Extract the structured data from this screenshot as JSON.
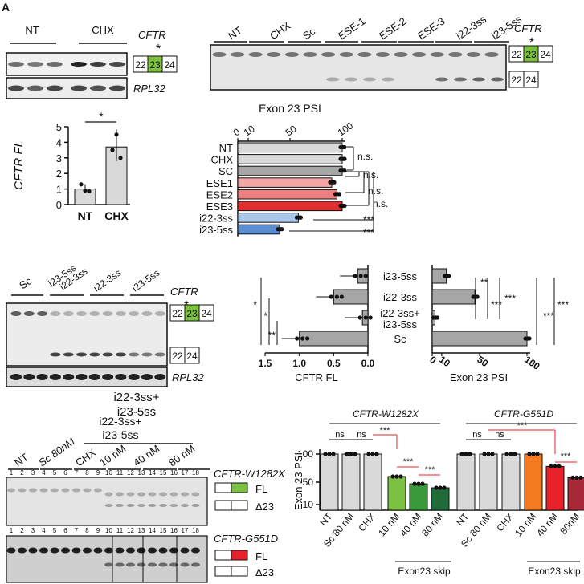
{
  "panel_labels": {
    "A": "A"
  },
  "panel_a": {
    "groups": [
      "NT",
      "CHX"
    ],
    "gene_label": "CFTR",
    "loading_label": "RPL32",
    "exons": [
      "22",
      "23",
      "24"
    ],
    "asterisk": "*"
  },
  "panel_b": {
    "groups": [
      "NT",
      "CHX",
      "Sc",
      "ESE-1",
      "ESE-2",
      "ESE-3",
      "i22-3ss",
      "i23-5ss"
    ],
    "gene_label": "CFTR",
    "exons_fl": [
      "22",
      "23",
      "24"
    ],
    "exons_skip": [
      "22",
      "24"
    ],
    "asterisk": "*"
  },
  "colors": {
    "exon23_green": "#7cc142",
    "g551d_red": "#e8202a"
  },
  "chart_data": [
    {
      "type": "bar",
      "ylabel": "CFTR FL",
      "categories": [
        "NT",
        "CHX"
      ],
      "values": [
        1.0,
        3.7
      ],
      "points": [
        [
          1.3,
          0.9,
          0.85
        ],
        [
          3.5,
          4.5,
          3.0
        ]
      ],
      "yticks": [
        "0",
        "1",
        "2",
        "3",
        "4",
        "5"
      ],
      "ylim": [
        0,
        5
      ],
      "significance": "*"
    },
    {
      "type": "bar",
      "orientation": "horizontal",
      "title": "Exon 23 PSI",
      "categories": [
        "NT",
        "CHX",
        "SC",
        "ESE1",
        "ESE2",
        "ESE3",
        "i22-3ss",
        "i23-5ss"
      ],
      "values": [
        100,
        100,
        100,
        90,
        95,
        100,
        58,
        40
      ],
      "colors": [
        "#d9d9d9",
        "#d9d9d9",
        "#a6a6a6",
        "#f4a6a6",
        "#ef7f7f",
        "#e03030",
        "#a9c8ea",
        "#5a8ed0"
      ],
      "xticks": [
        "0",
        "10",
        "50",
        "100"
      ],
      "xlim": [
        0,
        100
      ],
      "significance": [
        "n.s.",
        "n.s.",
        "n.s.",
        "n.s.",
        "***",
        "***"
      ]
    },
    {
      "type": "bar",
      "orientation": "horizontal",
      "xlabel": "CFTR FL",
      "categories": [
        "i23-5ss",
        "i22-3ss",
        "i22-3ss+ i23-5ss",
        "Sc"
      ],
      "values": [
        0.15,
        0.5,
        0.08,
        1.0
      ],
      "xticks": [
        "1.5",
        "1.0",
        "0.5",
        "0.0"
      ],
      "xlim": [
        1.5,
        0
      ],
      "significance": [
        "*",
        "*",
        "**"
      ]
    },
    {
      "type": "bar",
      "orientation": "horizontal",
      "xlabel": "Exon 23 PSI",
      "categories": [
        "i23-5ss",
        "i22-3ss",
        "i22-3ss+ i23-5ss",
        "Sc"
      ],
      "values": [
        15,
        45,
        3,
        100
      ],
      "xticks": [
        "0",
        "10",
        "50",
        "100"
      ],
      "xlim": [
        0,
        100
      ],
      "significance": [
        "**",
        "***",
        "***",
        "***",
        "***"
      ]
    },
    {
      "type": "bar",
      "ylabel": "Exon 23 PSI",
      "group_labels": [
        "CFTR-W1282X",
        "CFTR-G551D"
      ],
      "categories": [
        "NT",
        "Sc 80 nM",
        "CHX",
        "10 nM",
        "40 nM",
        "80 nM",
        "NT",
        "Sc 80 nM",
        "CHX",
        "10 nM",
        "40 nM",
        "80nM"
      ],
      "values": [
        100,
        100,
        100,
        60,
        47,
        40,
        100,
        100,
        100,
        100,
        78,
        58
      ],
      "colors": [
        "#d9d9d9",
        "#d9d9d9",
        "#d9d9d9",
        "#7cc142",
        "#3a9a3a",
        "#1f6b3a",
        "#d9d9d9",
        "#d9d9d9",
        "#d9d9d9",
        "#f47a20",
        "#e8202a",
        "#a8283a"
      ],
      "yticks": [
        "10",
        "50",
        "100"
      ],
      "ylim": [
        0,
        100
      ],
      "group_caption": "Exon23 skip",
      "significance": [
        "ns",
        "ns",
        "***",
        "***",
        "***",
        "ns",
        "ns",
        "***",
        "***"
      ]
    }
  ],
  "panel_c": {
    "lanes": [
      "Sc",
      "i23-5ss i22-3ss",
      "i22-3ss",
      "i23-5ss"
    ],
    "gene_label": "CFTR",
    "loading_label": "RPL32",
    "exons_fl": [
      "22",
      "23",
      "24"
    ],
    "exons_skip": [
      "22",
      "24"
    ],
    "asterisk": "*",
    "caption": "i22-3ss+ i23-5ss"
  },
  "panel_d": {
    "lanes": [
      "NT",
      "Sc 80nM",
      "CHX",
      "10 nM",
      "40 nM",
      "80 nM"
    ],
    "lane_numbers": [
      "1",
      "2",
      "3",
      "4",
      "5",
      "6",
      "7",
      "8",
      "9",
      "10",
      "11",
      "12",
      "13",
      "14",
      "15",
      "16",
      "17",
      "18"
    ],
    "header": "i22-3ss+ i23-5ss",
    "gene_top": "CFTR-W1282X",
    "gene_bottom": "CFTR-G551D",
    "fl": "FL",
    "skip": "Δ23"
  }
}
